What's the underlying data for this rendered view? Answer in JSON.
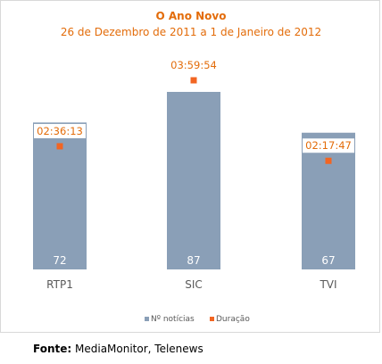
{
  "colors": {
    "bars": "#8a9fb7",
    "marker": "#f26522",
    "title": "#e36c0a",
    "label_text": "#e36c0a",
    "axis_text": "#595959",
    "frame": "#d9d9d9"
  },
  "chart_data": {
    "type": "bar",
    "title": "O Ano Novo",
    "subtitle": "26 de Dezembro de 2011 a 1 de Janeiro de 2012",
    "categories": [
      "RTP1",
      "SIC",
      "TVI"
    ],
    "series": [
      {
        "name": "Nº notícias",
        "kind": "bar",
        "values": [
          72,
          87,
          67
        ]
      },
      {
        "name": "Duração",
        "kind": "marker",
        "values": [
          "02:36:13",
          "03:59:54",
          "02:17:47"
        ],
        "seconds": [
          9373,
          14394,
          8267
        ]
      }
    ],
    "grid": false,
    "legend": "bottom-center"
  },
  "source": {
    "label": "Fonte:",
    "text": "MediaMonitor, Telenews"
  }
}
